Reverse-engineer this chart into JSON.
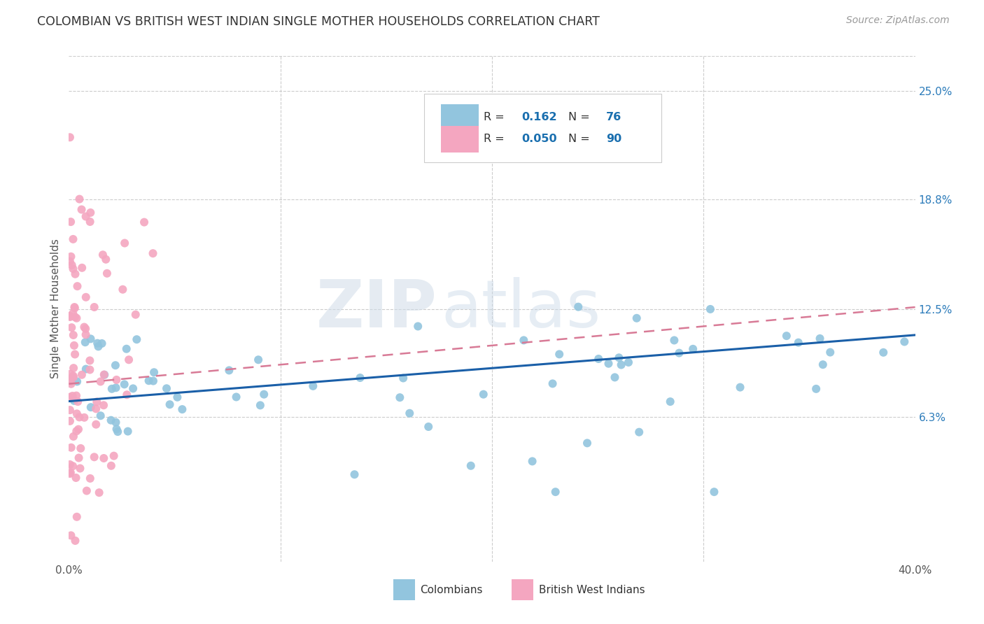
{
  "title": "COLOMBIAN VS BRITISH WEST INDIAN SINGLE MOTHER HOUSEHOLDS CORRELATION CHART",
  "source": "Source: ZipAtlas.com",
  "ylabel": "Single Mother Households",
  "xlim": [
    0.0,
    0.4
  ],
  "ylim": [
    -0.02,
    0.27
  ],
  "colombian_R": "0.162",
  "colombian_N": "76",
  "bwi_R": "0.050",
  "bwi_N": "90",
  "colombian_color": "#92c5de",
  "bwi_color": "#f4a6c0",
  "colombian_line_color": "#1a5fa8",
  "bwi_line_color": "#d87a96",
  "background_color": "#ffffff",
  "grid_color": "#cccccc",
  "y_ticks_right": [
    0.063,
    0.125,
    0.188,
    0.25
  ],
  "y_tick_labels_right": [
    "6.3%",
    "12.5%",
    "18.8%",
    "25.0%"
  ],
  "x_tick_positions": [
    0.0,
    0.1,
    0.2,
    0.3,
    0.4
  ],
  "x_tick_labels": [
    "0.0%",
    "",
    "",
    "",
    "40.0%"
  ],
  "watermark_zip_color": "#c8d8e8",
  "watermark_atlas_color": "#c8d8e8"
}
